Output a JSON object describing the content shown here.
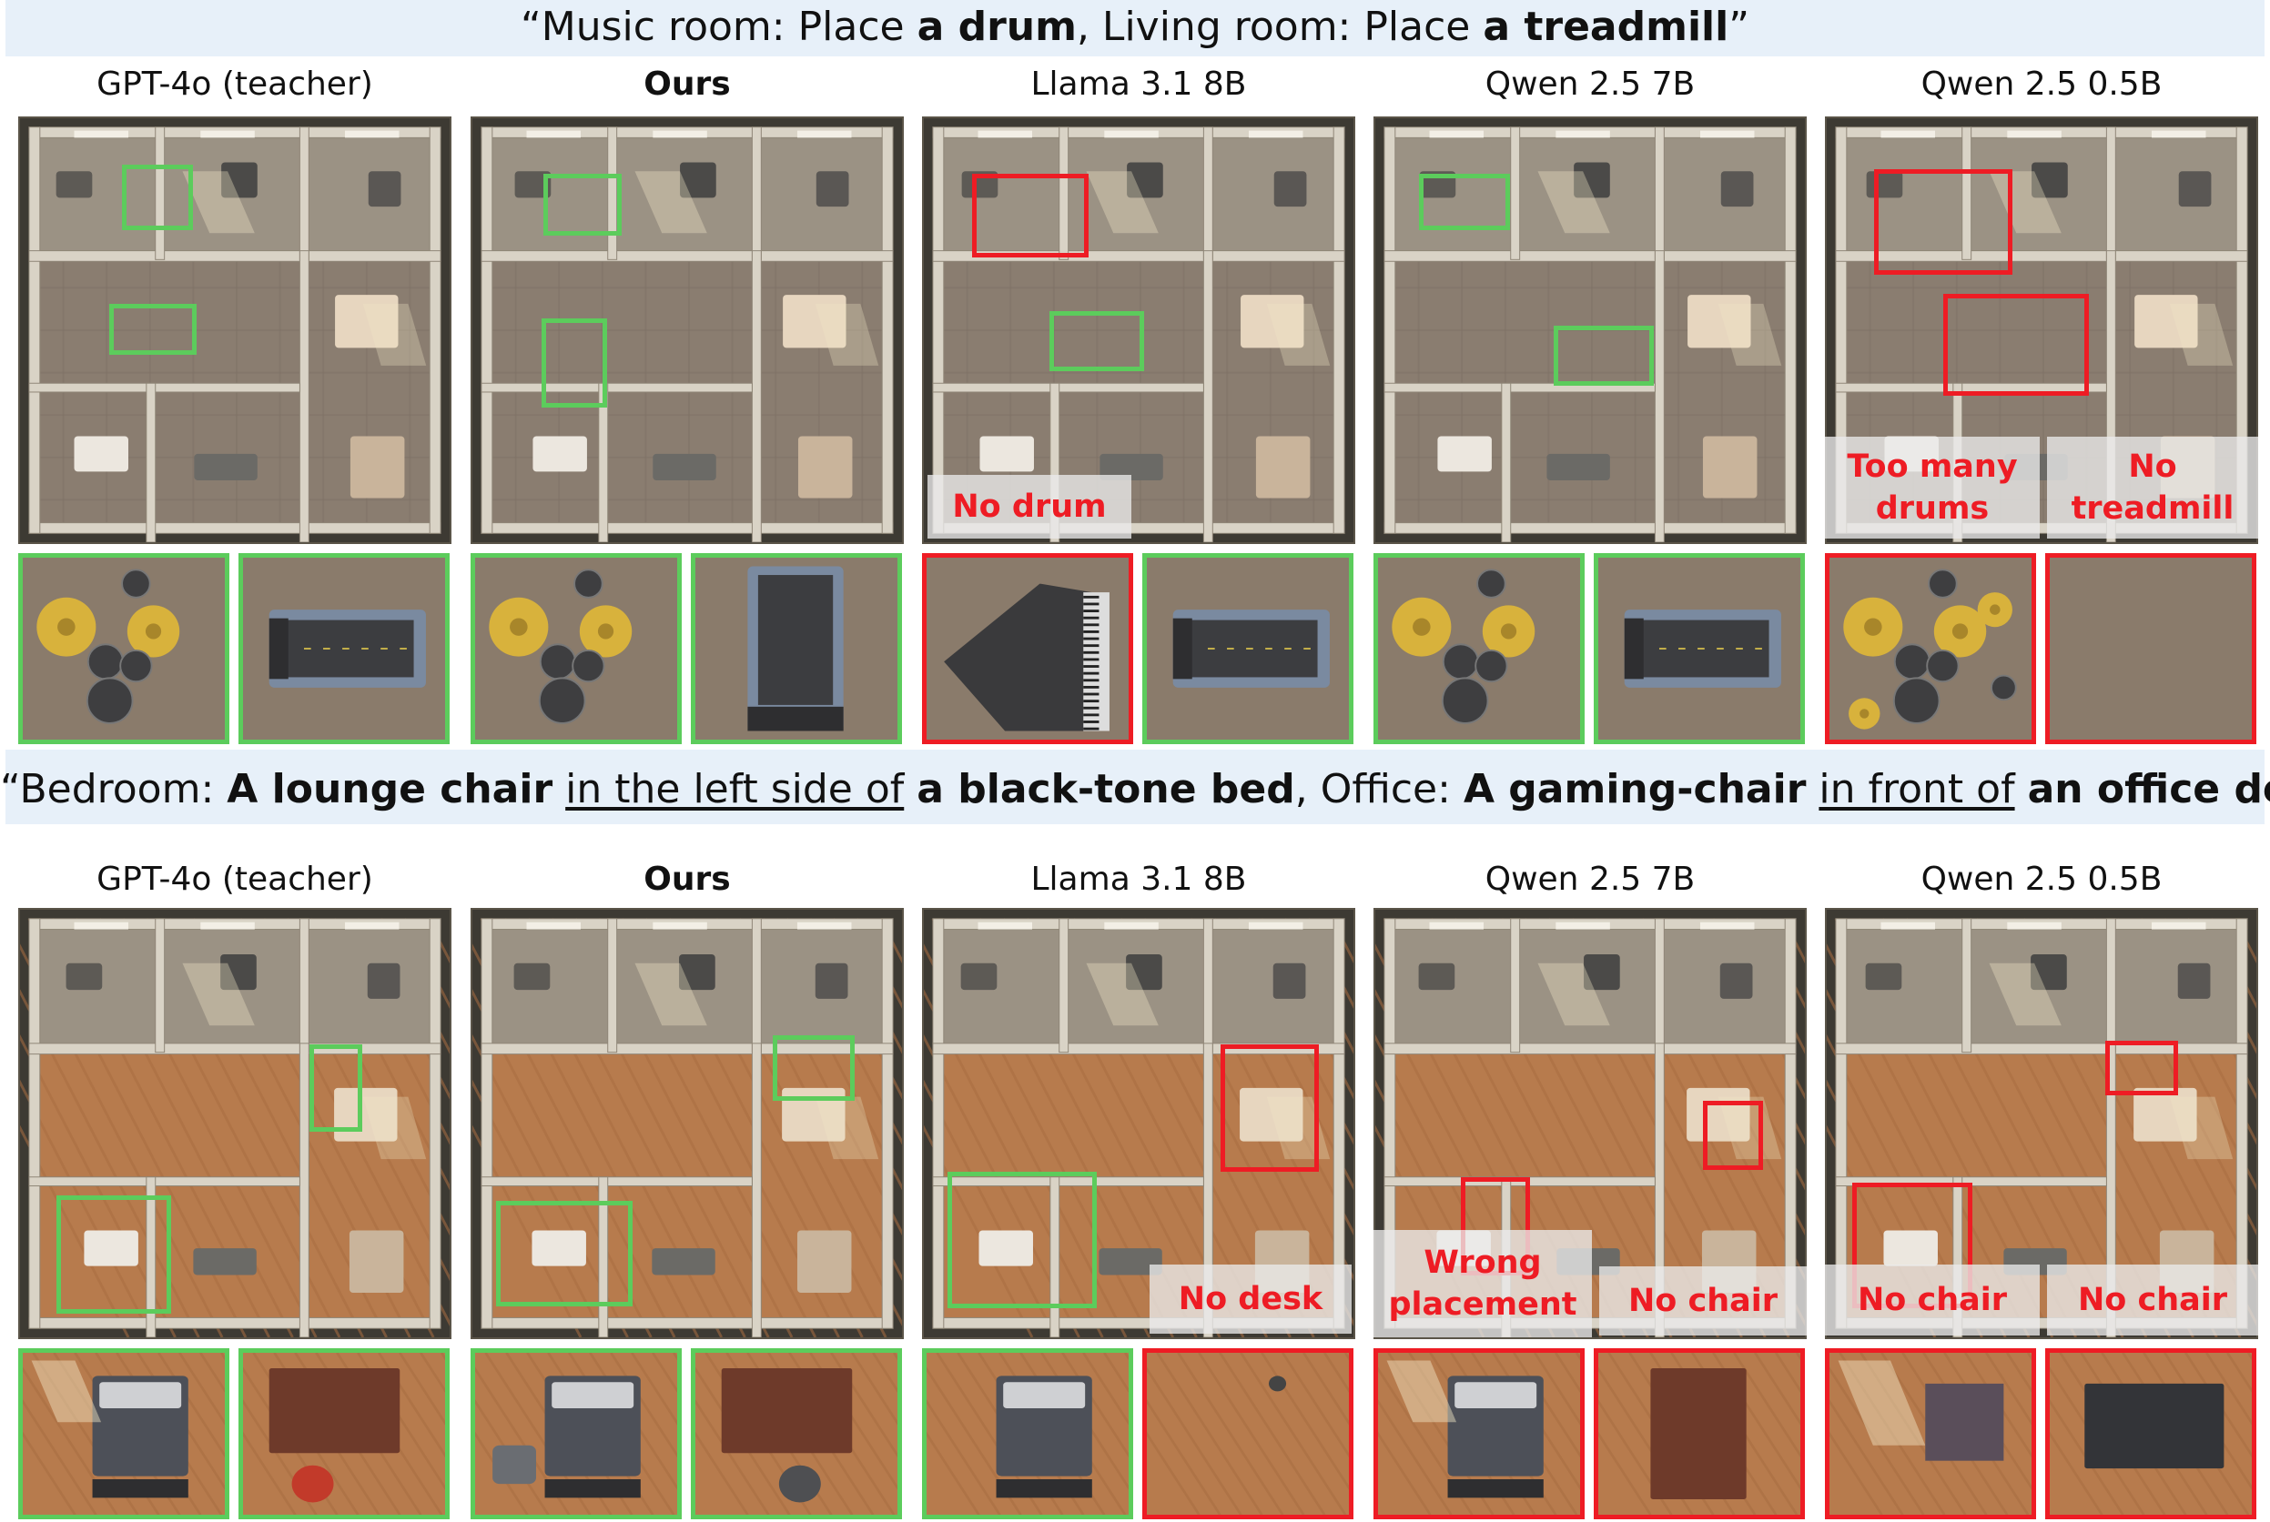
{
  "colors": {
    "correct": "#5ccc5c",
    "incorrect": "#ee1c24",
    "band": "#e7f0f9"
  },
  "rows": [
    {
      "prompt": {
        "open": "“",
        "s1": "Music room: Place ",
        "b1": "a drum",
        "s2": ",  Living room: Place ",
        "b2": "a treadmill",
        "close": "”"
      },
      "floor": "tile",
      "columns": [
        {
          "label": "GPT-4o (teacher)",
          "bold": false,
          "crops": [
            "drum",
            "treadmill"
          ],
          "crop_status": [
            "correct",
            "correct"
          ],
          "captions": []
        },
        {
          "label": "Ours",
          "bold": true,
          "crops": [
            "drum",
            "treadmill-vertical"
          ],
          "crop_status": [
            "correct",
            "correct"
          ],
          "captions": []
        },
        {
          "label": "Llama 3.1 8B",
          "bold": false,
          "crops": [
            "piano",
            "treadmill"
          ],
          "crop_status": [
            "incorrect",
            "correct"
          ],
          "captions": [
            "No drum"
          ]
        },
        {
          "label": "Qwen 2.5 7B",
          "bold": false,
          "crops": [
            "drum",
            "treadmill-flip"
          ],
          "crop_status": [
            "correct",
            "correct"
          ],
          "captions": []
        },
        {
          "label": "Qwen 2.5 0.5B",
          "bold": false,
          "crops": [
            "drums-many",
            "empty-tile"
          ],
          "crop_status": [
            "incorrect",
            "incorrect"
          ],
          "captions": [
            "Too many\ndrums",
            "No\ntreadmill"
          ]
        }
      ]
    },
    {
      "prompt": {
        "open": "“",
        "s1": "Bedroom: ",
        "b1": "A lounge chair",
        "u1": "in the left side of",
        "b2": "a black-tone bed",
        "s2": ",  Office: ",
        "b3": "A gaming-chair",
        "u2": "in front of",
        "b4": "an office desk",
        "close": "”"
      },
      "floor": "wood",
      "columns": [
        {
          "label": "GPT-4o (teacher)",
          "bold": false,
          "crops": [
            "bed",
            "desk-chair"
          ],
          "crop_status": [
            "correct",
            "correct"
          ],
          "captions": []
        },
        {
          "label": "Ours",
          "bold": true,
          "crops": [
            "bed-chair",
            "desk-chair-2"
          ],
          "crop_status": [
            "correct",
            "correct"
          ],
          "captions": []
        },
        {
          "label": "Llama 3.1 8B",
          "bold": false,
          "crops": [
            "bed-small",
            "empty-wood"
          ],
          "crop_status": [
            "correct",
            "incorrect"
          ],
          "captions": [
            "No desk"
          ]
        },
        {
          "label": "Qwen 2.5 7B",
          "bold": false,
          "crops": [
            "bed-window",
            "desk-only"
          ],
          "crop_status": [
            "incorrect",
            "incorrect"
          ],
          "captions": [
            "Wrong\nplacement",
            "No chair"
          ]
        },
        {
          "label": "Qwen 2.5 0.5B",
          "bold": false,
          "crops": [
            "desk-window",
            "desk-dark"
          ],
          "crop_status": [
            "incorrect",
            "incorrect"
          ],
          "captions": [
            "No chair",
            "No chair"
          ]
        }
      ]
    }
  ]
}
